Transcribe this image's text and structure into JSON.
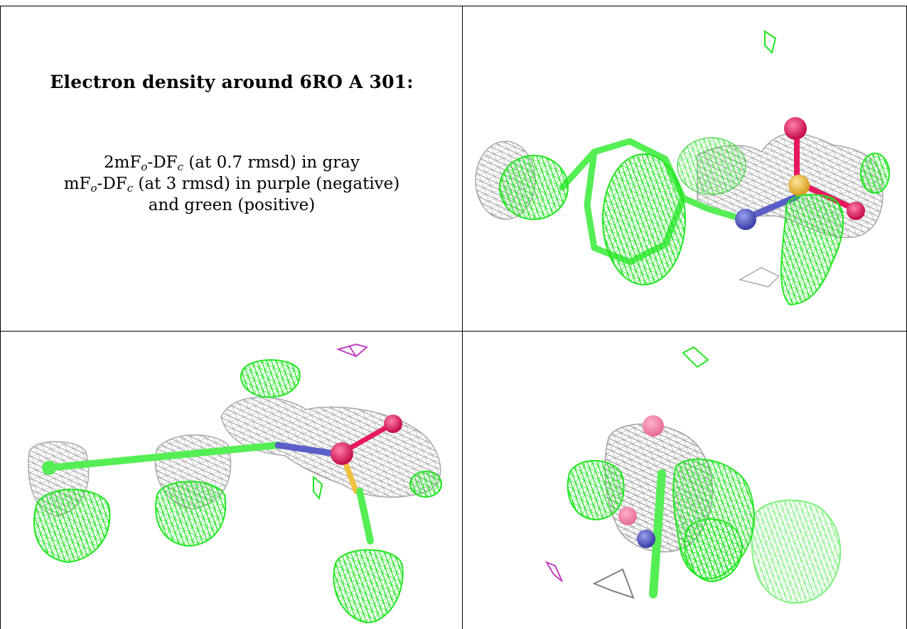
{
  "panel_text": {
    "title": "Electron density around 6RO A 301:",
    "line1": {
      "pre": "2mF",
      "sub1": "o",
      "mid": "-DF",
      "sub2": "c",
      "post": " (at 0.7 rmsd) in gray"
    },
    "line2": {
      "pre": "mF",
      "sub1": "o",
      "mid": "-DF",
      "sub2": "c",
      "post": " (at 3 rmsd) in purple (negative)"
    },
    "line3": "and green (positive)"
  },
  "colors": {
    "map_2fofc": "#a9a9a9",
    "map_positive": "#22e622",
    "map_negative": "#c040c0",
    "carbon": "#55ee55",
    "nitrogen": "#5a5fc8",
    "oxygen": "#e8185e",
    "sulfur": "#f0c040",
    "border": "#000000"
  },
  "views": [
    {
      "name": "view-top-right"
    },
    {
      "name": "view-bottom-left"
    },
    {
      "name": "view-bottom-right"
    }
  ]
}
